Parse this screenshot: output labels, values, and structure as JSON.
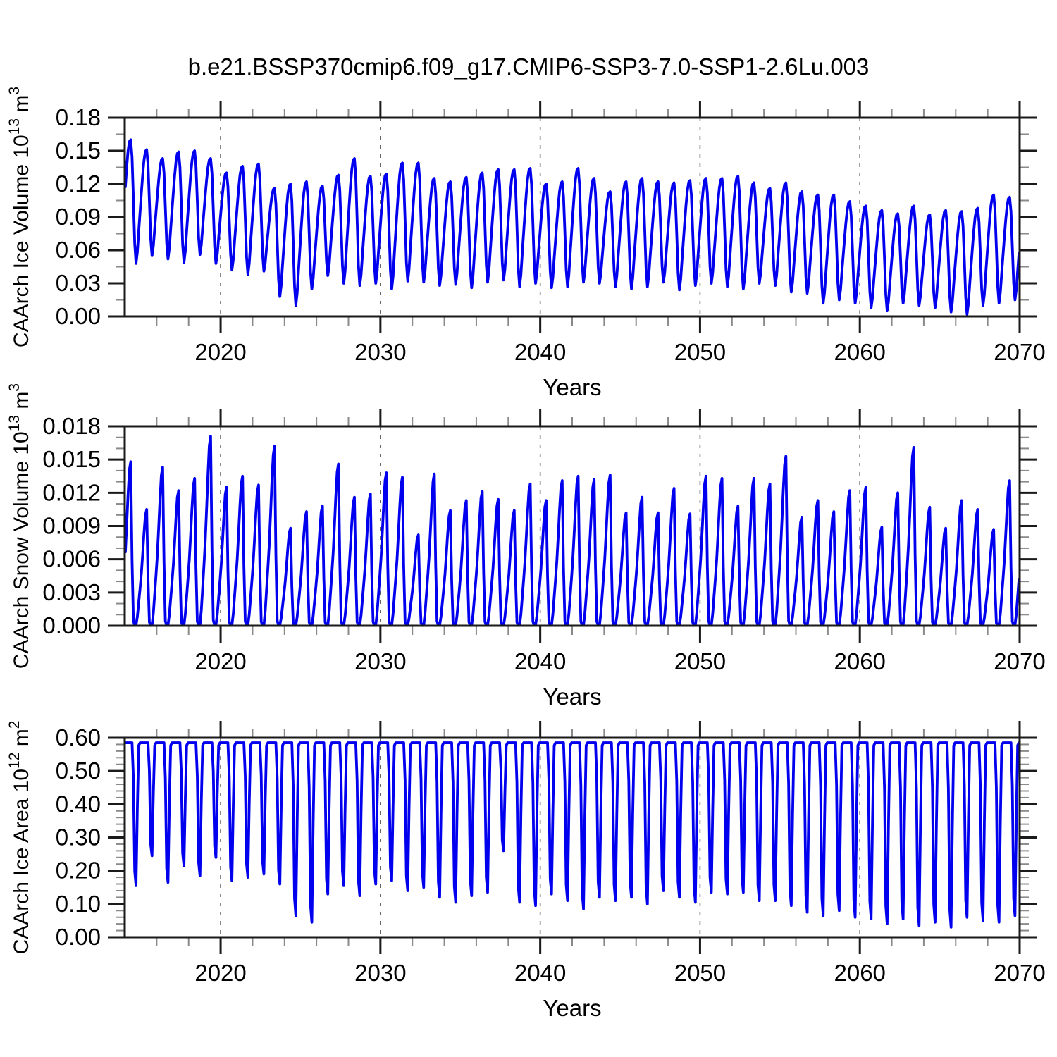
{
  "title": "b.e21.BSSP370cmip6.f09_g17.CMIP6-SSP3-7.0-SSP1-2.6Lu.003",
  "xlabel": "Years",
  "colors": {
    "line": "#0000ee",
    "frame": "#1a1a1a",
    "major_tick": "#1a1a1a",
    "minor_tick": "#8a8a8a",
    "gridline": "#555555",
    "text": "#000000"
  },
  "x_axis": {
    "range": [
      2014,
      2070
    ],
    "major_ticks": [
      2020,
      2030,
      2040,
      2050,
      2060,
      2070
    ],
    "tick_labels": [
      "2020",
      "2030",
      "2040",
      "2050",
      "2060",
      "2070"
    ],
    "minor_step": 2,
    "gridlines": [
      2020,
      2030,
      2040,
      2050,
      2060
    ]
  },
  "chart_data": [
    {
      "name": "ice-volume",
      "type": "line",
      "kind": "icevol",
      "ylabel_parts": [
        {
          "text": "CAArch Ice Volume 10",
          "sup": false
        },
        {
          "text": "13",
          "sup": true
        },
        {
          "text": " m",
          "sup": false
        },
        {
          "text": "3",
          "sup": true
        }
      ],
      "ylim": [
        0,
        0.18
      ],
      "ytick_step": 0.03,
      "y_minor_step": 0.015,
      "ytick_labels": [
        "0.00",
        "0.03",
        "0.06",
        "0.09",
        "0.12",
        "0.15",
        "0.18"
      ],
      "year_start": 2014,
      "points_per_year": 12,
      "annual_max": [
        0.16,
        0.151,
        0.143,
        0.149,
        0.15,
        0.143,
        0.13,
        0.136,
        0.138,
        0.116,
        0.12,
        0.122,
        0.118,
        0.128,
        0.143,
        0.127,
        0.129,
        0.139,
        0.139,
        0.125,
        0.122,
        0.126,
        0.13,
        0.133,
        0.133,
        0.134,
        0.12,
        0.122,
        0.134,
        0.125,
        0.113,
        0.122,
        0.125,
        0.122,
        0.121,
        0.123,
        0.125,
        0.125,
        0.127,
        0.121,
        0.116,
        0.121,
        0.113,
        0.11,
        0.11,
        0.104,
        0.1,
        0.096,
        0.093,
        0.1,
        0.092,
        0.096,
        0.095,
        0.098,
        0.11,
        0.108
      ],
      "annual_min": [
        0.048,
        0.055,
        0.052,
        0.049,
        0.056,
        0.048,
        0.042,
        0.038,
        0.041,
        0.018,
        0.01,
        0.025,
        0.037,
        0.03,
        0.028,
        0.03,
        0.025,
        0.032,
        0.031,
        0.028,
        0.029,
        0.026,
        0.031,
        0.033,
        0.027,
        0.03,
        0.026,
        0.027,
        0.031,
        0.03,
        0.027,
        0.025,
        0.027,
        0.031,
        0.024,
        0.028,
        0.03,
        0.027,
        0.025,
        0.03,
        0.028,
        0.022,
        0.021,
        0.012,
        0.015,
        0.012,
        0.008,
        0.005,
        0.012,
        0.01,
        0.008,
        0.004,
        0.002,
        0.01,
        0.012,
        0.015
      ],
      "seasonal_shape": {
        "rise_oct_to_may": [
          0.1,
          0.28,
          0.45,
          0.62,
          0.78,
          0.91,
          0.985,
          1.0
        ],
        "fall_jun_to_sep": [
          0.86,
          0.52,
          0.16,
          0.0
        ]
      }
    },
    {
      "name": "snow-volume",
      "type": "line",
      "kind": "snow",
      "ylabel_parts": [
        {
          "text": "CAArch Snow Volume 10",
          "sup": false
        },
        {
          "text": "13",
          "sup": true
        },
        {
          "text": " m",
          "sup": false
        },
        {
          "text": "3",
          "sup": true
        }
      ],
      "ylim": [
        0,
        0.018
      ],
      "ytick_step": 0.003,
      "y_minor_step": 0.001,
      "ytick_labels": [
        "0.000",
        "0.003",
        "0.006",
        "0.009",
        "0.012",
        "0.015",
        "0.018"
      ],
      "year_start": 2014,
      "points_per_year": 12,
      "annual_min_value": 0.0,
      "annual_peak": [
        0.0148,
        0.0105,
        0.0143,
        0.0122,
        0.0133,
        0.0171,
        0.0125,
        0.0135,
        0.0127,
        0.0162,
        0.0088,
        0.0103,
        0.0108,
        0.0146,
        0.0116,
        0.0119,
        0.0138,
        0.0134,
        0.0082,
        0.0137,
        0.0104,
        0.0113,
        0.0121,
        0.0114,
        0.0104,
        0.0128,
        0.0113,
        0.0131,
        0.0135,
        0.0132,
        0.0136,
        0.0102,
        0.0116,
        0.0102,
        0.0124,
        0.0101,
        0.0135,
        0.0133,
        0.0108,
        0.0133,
        0.0128,
        0.0153,
        0.0098,
        0.0113,
        0.0103,
        0.0122,
        0.0125,
        0.0089,
        0.012,
        0.0161,
        0.0107,
        0.0088,
        0.0113,
        0.0105,
        0.0087,
        0.0131
      ],
      "seasonal_shape": {
        "rise_jan_to_may": [
          0.45,
          0.62,
          0.8,
          0.95,
          1.0
        ],
        "fall_jun_to_sep": [
          0.4,
          0.03,
          0.002,
          0.005
        ],
        "rise_oct_to_dec": [
          0.08,
          0.2,
          0.32
        ]
      }
    },
    {
      "name": "ice-area",
      "type": "line",
      "kind": "area",
      "ylabel_parts": [
        {
          "text": "CAArch Ice Area 10",
          "sup": false
        },
        {
          "text": "12",
          "sup": true
        },
        {
          "text": " m",
          "sup": false
        },
        {
          "text": "2",
          "sup": true
        }
      ],
      "ylim": [
        0,
        0.6
      ],
      "ytick_step": 0.1,
      "y_minor_step": 0.02,
      "ytick_labels": [
        "0.00",
        "0.10",
        "0.20",
        "0.30",
        "0.40",
        "0.50",
        "0.60"
      ],
      "year_start": 2014,
      "points_per_year": 12,
      "winter_plateau": 0.585,
      "annual_summer_min": [
        0.155,
        0.245,
        0.165,
        0.215,
        0.185,
        0.24,
        0.17,
        0.18,
        0.19,
        0.16,
        0.065,
        0.045,
        0.13,
        0.155,
        0.125,
        0.16,
        0.17,
        0.14,
        0.15,
        0.12,
        0.105,
        0.125,
        0.135,
        0.26,
        0.105,
        0.095,
        0.13,
        0.11,
        0.085,
        0.12,
        0.11,
        0.12,
        0.1,
        0.14,
        0.12,
        0.105,
        0.135,
        0.13,
        0.135,
        0.11,
        0.11,
        0.095,
        0.075,
        0.065,
        0.08,
        0.06,
        0.055,
        0.04,
        0.055,
        0.035,
        0.045,
        0.03,
        0.06,
        0.05,
        0.045,
        0.065
      ],
      "seasonal_shape": {
        "jul_frac": 0.25,
        "aug_frac": 0.1,
        "oct_frac": 0.55,
        "nov_offset": 0.008
      }
    }
  ]
}
